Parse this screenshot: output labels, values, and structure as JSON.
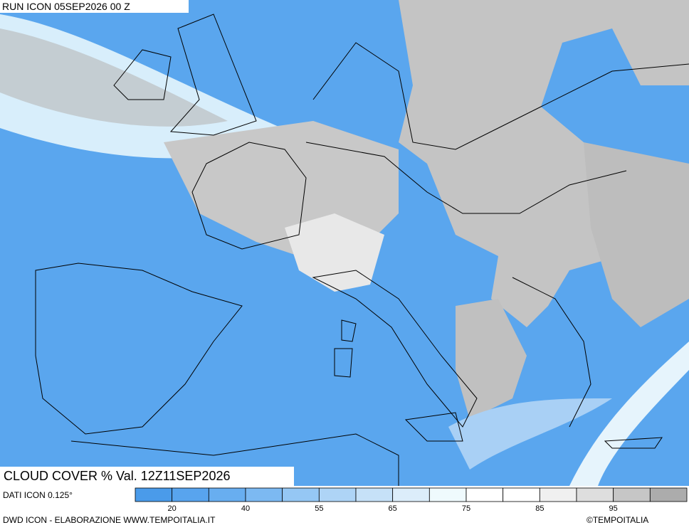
{
  "header": {
    "run": "RUN ICON 05SEP2026 00 Z"
  },
  "map": {
    "variable": "CLOUD COVER % Val. 12Z11SEP2026"
  },
  "legend": {
    "colors": [
      "#4a9bea",
      "#58a4ee",
      "#68aef0",
      "#7cb9f2",
      "#95c7f4",
      "#aed4f6",
      "#c6e1f8",
      "#dcedfa",
      "#effafd",
      "#ffffff",
      "#ffffff",
      "#f0f0f0",
      "#dedede",
      "#c6c6c6",
      "#acacac"
    ],
    "ticks": [
      20,
      40,
      55,
      65,
      75,
      85,
      95
    ]
  },
  "footer": {
    "data": "DATI ICON 0.125°",
    "credit": "DWD ICON - ELABORAZIONE WWW.TEMPOITALIA.IT",
    "copyright": "©TEMPOITALIA"
  }
}
